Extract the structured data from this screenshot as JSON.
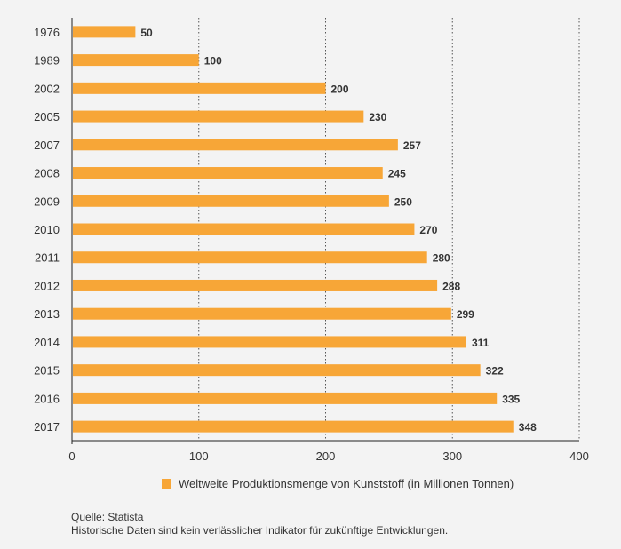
{
  "chart_data": {
    "type": "bar",
    "orientation": "horizontal",
    "categories": [
      "1976",
      "1989",
      "2002",
      "2005",
      "2007",
      "2008",
      "2009",
      "2010",
      "2011",
      "2012",
      "2013",
      "2014",
      "2015",
      "2016",
      "2017"
    ],
    "series": [
      {
        "name": "Weltweite Produktionsmenge von Kunststoff (in Millionen Tonnen)",
        "values": [
          50,
          100,
          200,
          230,
          257,
          245,
          250,
          270,
          280,
          288,
          299,
          311,
          322,
          335,
          348
        ]
      }
    ],
    "xlim": [
      0,
      400
    ],
    "xticks": [
      0,
      100,
      200,
      300,
      400
    ],
    "title": "",
    "xlabel": "",
    "ylabel": "",
    "grid": "vertical dotted",
    "legend_position": "bottom"
  },
  "colors": {
    "bar": "#f7a637",
    "background": "#f3f3f3",
    "grid": "#555555"
  },
  "footer": {
    "source": "Quelle: Statista",
    "note": "Historische Daten sind kein verlässlicher Indikator für zukünftige Entwicklungen."
  }
}
